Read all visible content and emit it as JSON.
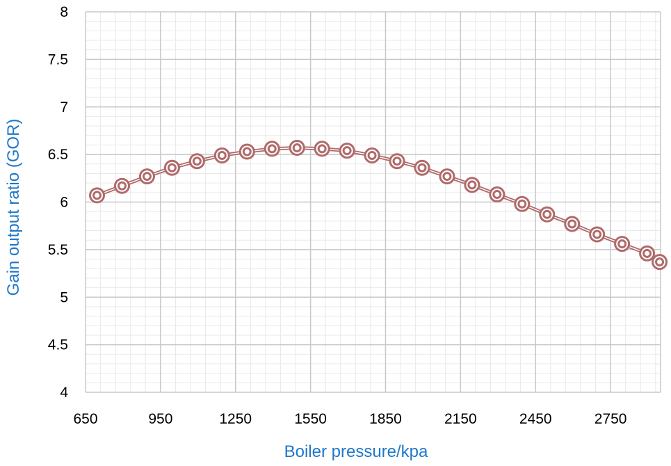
{
  "chart_data": {
    "type": "line",
    "title": "",
    "xlabel": "Boiler pressure/kpa",
    "ylabel": "Gain output ratio  (GOR)",
    "xlim": [
      650,
      2950
    ],
    "ylim": [
      4,
      8
    ],
    "x_ticks": [
      650,
      950,
      1250,
      1550,
      1850,
      2150,
      2450,
      2750
    ],
    "x_tick_labels": [
      "650",
      "950",
      "1250",
      "1550",
      "1850",
      "2150",
      "2450",
      "2750"
    ],
    "y_ticks": [
      4,
      4.5,
      5,
      5.5,
      6,
      6.5,
      7,
      7.5,
      8
    ],
    "y_tick_labels": [
      "4",
      "4.5",
      "5",
      "5.5",
      "6",
      "6.5",
      "7",
      "7.5",
      "8"
    ],
    "grid": true,
    "minor_grid": true,
    "legend": "none",
    "series_color": "#b06a6a",
    "series": [
      {
        "x": [
          696,
          796,
          896,
          996,
          1096,
          1196,
          1296,
          1396,
          1496,
          1596,
          1696,
          1796,
          1896,
          1996,
          2096,
          2196,
          2296,
          2396,
          2496,
          2596,
          2696,
          2796,
          2896,
          2946
        ],
        "y": [
          6.07,
          6.17,
          6.27,
          6.36,
          6.43,
          6.49,
          6.53,
          6.56,
          6.57,
          6.56,
          6.54,
          6.49,
          6.43,
          6.36,
          6.27,
          6.18,
          6.08,
          5.98,
          5.87,
          5.77,
          5.66,
          5.56,
          5.46,
          5.37
        ]
      }
    ]
  }
}
